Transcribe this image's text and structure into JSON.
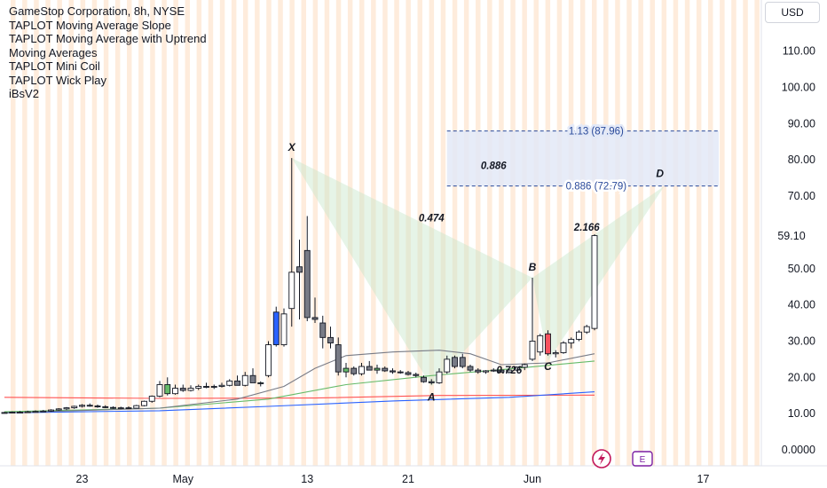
{
  "legend": {
    "title": "GameStop Corporation, 8h, NYSE",
    "indicators": [
      "TAPLOT Moving Average Slope",
      "TAPLOT Moving Average with Uptrend",
      "Moving Averages",
      "TAPLOT Mini Coil",
      "TAPLOT Wick Play",
      "iBsV2"
    ]
  },
  "currency_button": "USD",
  "last_price": "59.10",
  "colors": {
    "up": "#ffffff",
    "down": "#787b86",
    "blue_candle": "#2962ff",
    "red_candle": "#f7525f",
    "green_candle": "#66bb6a",
    "ma_long": "#ff5252",
    "ma_blue": "#2962ff",
    "ma_green": "#66bb6a",
    "ma_gray": "#787b86",
    "stripe": "#fde6d0",
    "pattern_fill": "#c8e6c9",
    "box_fill": "#e3e9f7",
    "box_line": "#2a4a9a"
  },
  "icons": [
    "lightning-icon",
    "e-icon"
  ],
  "chart_data": {
    "type": "candlestick",
    "y_ticks": [
      "110.00",
      "100.00",
      "90.00",
      "80.00",
      "70.00",
      "60.00",
      "50.00",
      "40.00",
      "30.00",
      "20.00",
      "10.00",
      "0.0000"
    ],
    "ylim": [
      0,
      122
    ],
    "x_ticks": [
      "23",
      "May",
      "13",
      "21",
      "Jun",
      "17"
    ],
    "candles": [
      {
        "o": 10.2,
        "h": 10.5,
        "l": 10.0,
        "c": 10.3
      },
      {
        "o": 10.3,
        "h": 10.6,
        "l": 10.1,
        "c": 10.4
      },
      {
        "o": 10.4,
        "h": 10.7,
        "l": 10.2,
        "c": 10.4
      },
      {
        "o": 10.4,
        "h": 10.8,
        "l": 10.2,
        "c": 10.5
      },
      {
        "o": 10.5,
        "h": 10.9,
        "l": 10.3,
        "c": 10.6
      },
      {
        "o": 10.6,
        "h": 11.0,
        "l": 10.4,
        "c": 10.7
      },
      {
        "o": 10.7,
        "h": 11.2,
        "l": 10.5,
        "c": 11.0
      },
      {
        "o": 11.0,
        "h": 11.5,
        "l": 10.8,
        "c": 11.3
      },
      {
        "o": 11.3,
        "h": 11.8,
        "l": 11.0,
        "c": 11.6
      },
      {
        "o": 11.6,
        "h": 12.2,
        "l": 11.3,
        "c": 12.0
      },
      {
        "o": 12.0,
        "h": 12.6,
        "l": 11.7,
        "c": 12.3
      },
      {
        "o": 12.3,
        "h": 12.8,
        "l": 11.9,
        "c": 12.1
      },
      {
        "o": 12.1,
        "h": 12.5,
        "l": 11.6,
        "c": 11.9
      },
      {
        "o": 11.9,
        "h": 12.3,
        "l": 11.5,
        "c": 11.7
      },
      {
        "o": 11.7,
        "h": 12.0,
        "l": 11.3,
        "c": 11.5
      },
      {
        "o": 11.5,
        "h": 11.9,
        "l": 11.2,
        "c": 11.6
      },
      {
        "o": 11.6,
        "h": 12.0,
        "l": 11.3,
        "c": 11.5
      },
      {
        "o": 11.5,
        "h": 12.4,
        "l": 11.4,
        "c": 12.2
      },
      {
        "o": 12.2,
        "h": 13.6,
        "l": 12.0,
        "c": 13.4
      },
      {
        "o": 13.4,
        "h": 15.0,
        "l": 13.0,
        "c": 14.8
      },
      {
        "o": 14.8,
        "h": 19.0,
        "l": 14.5,
        "c": 18.0
      },
      {
        "o": 18.0,
        "h": 20.0,
        "l": 15.0,
        "c": 15.5
      },
      {
        "o": 15.5,
        "h": 18.0,
        "l": 15.2,
        "c": 17.0
      },
      {
        "o": 17.0,
        "h": 18.0,
        "l": 16.0,
        "c": 16.4
      },
      {
        "o": 16.4,
        "h": 17.8,
        "l": 16.1,
        "c": 17.0
      },
      {
        "o": 17.0,
        "h": 18.0,
        "l": 16.5,
        "c": 17.5
      },
      {
        "o": 17.5,
        "h": 18.5,
        "l": 17.0,
        "c": 17.3
      },
      {
        "o": 17.3,
        "h": 18.0,
        "l": 16.8,
        "c": 17.5
      },
      {
        "o": 17.5,
        "h": 18.5,
        "l": 17.2,
        "c": 17.8
      },
      {
        "o": 17.8,
        "h": 19.5,
        "l": 17.5,
        "c": 19.0
      },
      {
        "o": 19.0,
        "h": 20.5,
        "l": 18.0,
        "c": 17.8
      },
      {
        "o": 17.8,
        "h": 21.5,
        "l": 17.5,
        "c": 20.5
      },
      {
        "o": 20.5,
        "h": 22.5,
        "l": 18.5,
        "c": 18.5
      },
      {
        "o": 18.5,
        "h": 18.9,
        "l": 17.5,
        "c": 18.3
      },
      {
        "o": 20.5,
        "h": 30.0,
        "l": 20.0,
        "c": 29.0
      },
      {
        "o": 29.0,
        "h": 39.5,
        "l": 28.5,
        "c": 38.0
      },
      {
        "o": 29.0,
        "h": 39.0,
        "l": 28.5,
        "c": 37.5
      },
      {
        "o": 39.0,
        "h": 80.5,
        "l": 34.0,
        "c": 49.0
      },
      {
        "o": 49.0,
        "h": 58.0,
        "l": 36.0,
        "c": 50.5
      },
      {
        "o": 55.0,
        "h": 64.5,
        "l": 35.5,
        "c": 36.5
      },
      {
        "o": 36.5,
        "h": 42.0,
        "l": 35.0,
        "c": 36.0
      },
      {
        "o": 35.0,
        "h": 37.0,
        "l": 28.0,
        "c": 31.0
      },
      {
        "o": 31.0,
        "h": 34.0,
        "l": 28.0,
        "c": 29.5
      },
      {
        "o": 29.0,
        "h": 31.0,
        "l": 20.5,
        "c": 21.5
      },
      {
        "o": 21.5,
        "h": 24.0,
        "l": 20.0,
        "c": 22.5
      },
      {
        "o": 22.5,
        "h": 23.0,
        "l": 20.5,
        "c": 21.0
      },
      {
        "o": 21.0,
        "h": 24.0,
        "l": 20.5,
        "c": 23.0
      },
      {
        "o": 23.0,
        "h": 24.5,
        "l": 22.0,
        "c": 22.0
      },
      {
        "o": 22.0,
        "h": 23.5,
        "l": 21.0,
        "c": 22.5
      },
      {
        "o": 22.5,
        "h": 23.0,
        "l": 21.5,
        "c": 21.8
      },
      {
        "o": 21.8,
        "h": 22.5,
        "l": 21.0,
        "c": 21.5
      },
      {
        "o": 21.5,
        "h": 22.0,
        "l": 21.0,
        "c": 21.3
      },
      {
        "o": 21.3,
        "h": 21.8,
        "l": 20.5,
        "c": 20.8
      },
      {
        "o": 20.8,
        "h": 21.3,
        "l": 20.0,
        "c": 20.5
      },
      {
        "o": 20.0,
        "h": 20.5,
        "l": 18.5,
        "c": 18.8
      },
      {
        "o": 18.8,
        "h": 19.5,
        "l": 18.0,
        "c": 18.5
      },
      {
        "o": 18.5,
        "h": 22.5,
        "l": 18.2,
        "c": 21.5
      },
      {
        "o": 21.5,
        "h": 26.0,
        "l": 21.0,
        "c": 25.0
      },
      {
        "o": 23.0,
        "h": 26.0,
        "l": 22.5,
        "c": 25.5
      },
      {
        "o": 25.5,
        "h": 26.5,
        "l": 22.5,
        "c": 23.0
      },
      {
        "o": 23.0,
        "h": 23.5,
        "l": 21.5,
        "c": 22.0
      },
      {
        "o": 22.0,
        "h": 22.5,
        "l": 21.0,
        "c": 21.5
      },
      {
        "o": 21.5,
        "h": 22.0,
        "l": 21.0,
        "c": 21.8
      },
      {
        "o": 21.8,
        "h": 22.5,
        "l": 21.5,
        "c": 22.0
      },
      {
        "o": 22.0,
        "h": 22.5,
        "l": 21.2,
        "c": 21.5
      },
      {
        "o": 21.5,
        "h": 22.3,
        "l": 21.0,
        "c": 22.0
      },
      {
        "o": 22.0,
        "h": 23.0,
        "l": 21.8,
        "c": 22.8
      },
      {
        "o": 22.8,
        "h": 23.8,
        "l": 22.0,
        "c": 23.5
      },
      {
        "o": 25.0,
        "h": 47.5,
        "l": 24.5,
        "c": 30.0
      },
      {
        "o": 27.0,
        "h": 32.0,
        "l": 26.0,
        "c": 31.5
      },
      {
        "o": 32.0,
        "h": 33.0,
        "l": 26.0,
        "c": 26.5
      },
      {
        "o": 26.5,
        "h": 27.5,
        "l": 25.5,
        "c": 26.8
      },
      {
        "o": 26.8,
        "h": 30.0,
        "l": 26.5,
        "c": 29.5
      },
      {
        "o": 29.5,
        "h": 31.0,
        "l": 28.0,
        "c": 30.5
      },
      {
        "o": 30.5,
        "h": 33.0,
        "l": 30.0,
        "c": 32.5
      },
      {
        "o": 32.5,
        "h": 34.5,
        "l": 32.0,
        "c": 34.0
      },
      {
        "o": 33.5,
        "h": 59.5,
        "l": 33.0,
        "c": 59.1
      }
    ],
    "candle_colors": {
      "21": "green",
      "33": "green",
      "35": "blue",
      "38": "down",
      "39": "down",
      "41": "down",
      "42": "down",
      "43": "down",
      "44": "green",
      "47": "down",
      "48": "green",
      "58": "down",
      "59": "down",
      "70": "red"
    },
    "moving_averages": [
      {
        "name": "ma_long",
        "color": "#ff5252",
        "points": [
          [
            0,
            14.5
          ],
          [
            20,
            14.2
          ],
          [
            40,
            14.3
          ],
          [
            56,
            15.0
          ],
          [
            76,
            15.1
          ]
        ]
      },
      {
        "name": "ma_blue",
        "color": "#2962ff",
        "points": [
          [
            0,
            10.2
          ],
          [
            20,
            10.8
          ],
          [
            34,
            12.0
          ],
          [
            50,
            13.5
          ],
          [
            65,
            14.5
          ],
          [
            76,
            16.0
          ]
        ]
      },
      {
        "name": "ma_green",
        "color": "#66bb6a",
        "points": [
          [
            0,
            10.5
          ],
          [
            20,
            11.5
          ],
          [
            34,
            14.0
          ],
          [
            44,
            18.0
          ],
          [
            55,
            20.5
          ],
          [
            66,
            22.5
          ],
          [
            76,
            24.5
          ]
        ]
      },
      {
        "name": "ma_gray",
        "color": "#787b86",
        "points": [
          [
            0,
            10.2
          ],
          [
            20,
            11.5
          ],
          [
            30,
            14.0
          ],
          [
            36,
            17.5
          ],
          [
            40,
            22.5
          ],
          [
            44,
            26.0
          ],
          [
            50,
            27.0
          ],
          [
            56,
            27.5
          ],
          [
            60,
            26.5
          ],
          [
            64,
            23.5
          ],
          [
            70,
            24.0
          ],
          [
            76,
            26.5
          ]
        ]
      }
    ],
    "harmonic_pattern": {
      "points": [
        {
          "label": "X",
          "i": 37,
          "v": 80.5
        },
        {
          "label": "A",
          "i": 55,
          "v": 17.5
        },
        {
          "label": "B",
          "i": 68,
          "v": 47.5
        },
        {
          "label": "C",
          "i": 70,
          "v": 24.5
        },
        {
          "label": "D",
          "i": 85,
          "v": 72.79
        }
      ],
      "ratios": [
        {
          "text": "0.474",
          "i": 55,
          "v": 63
        },
        {
          "text": "0.886",
          "i": 63,
          "v": 77.5
        },
        {
          "text": "2.166",
          "i": 75,
          "v": 60.5
        },
        {
          "text": "0.726",
          "i": 65,
          "v": 21
        }
      ]
    },
    "target_box": {
      "from_i": 57,
      "to_i": 92,
      "upper": {
        "value": 87.96,
        "label": "1.13 (87.96)"
      },
      "lower": {
        "value": 72.79,
        "label": "0.886 (72.79)"
      }
    }
  }
}
